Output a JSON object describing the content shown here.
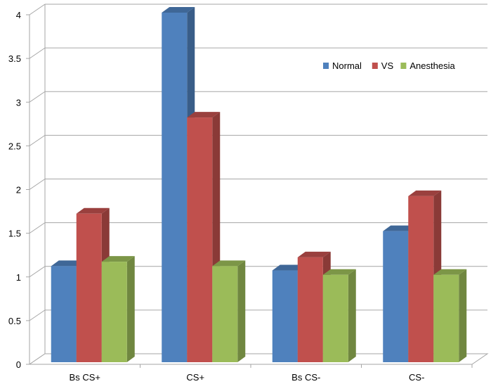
{
  "chart_data": {
    "type": "bar",
    "categories": [
      "Bs CS+",
      "CS+",
      "Bs CS-",
      "CS-"
    ],
    "series": [
      {
        "name": "Normal",
        "values": [
          1.1,
          4.0,
          1.05,
          1.5
        ]
      },
      {
        "name": "VS",
        "values": [
          1.7,
          2.8,
          1.2,
          1.9
        ]
      },
      {
        "name": "Anesthesia",
        "values": [
          1.15,
          1.1,
          1.0,
          1.0
        ]
      }
    ],
    "yticks": [
      "0",
      "0.5",
      "1",
      "1.5",
      "2",
      "2.5",
      "3",
      "3.5",
      "4"
    ],
    "ylim": [
      0,
      4
    ],
    "grid": true,
    "legend_position": "top-right",
    "colors": {
      "Normal": "#4F81BD",
      "VS": "#C0504D",
      "Anesthesia": "#9BBB59"
    },
    "title": "",
    "xlabel": "",
    "ylabel": ""
  }
}
